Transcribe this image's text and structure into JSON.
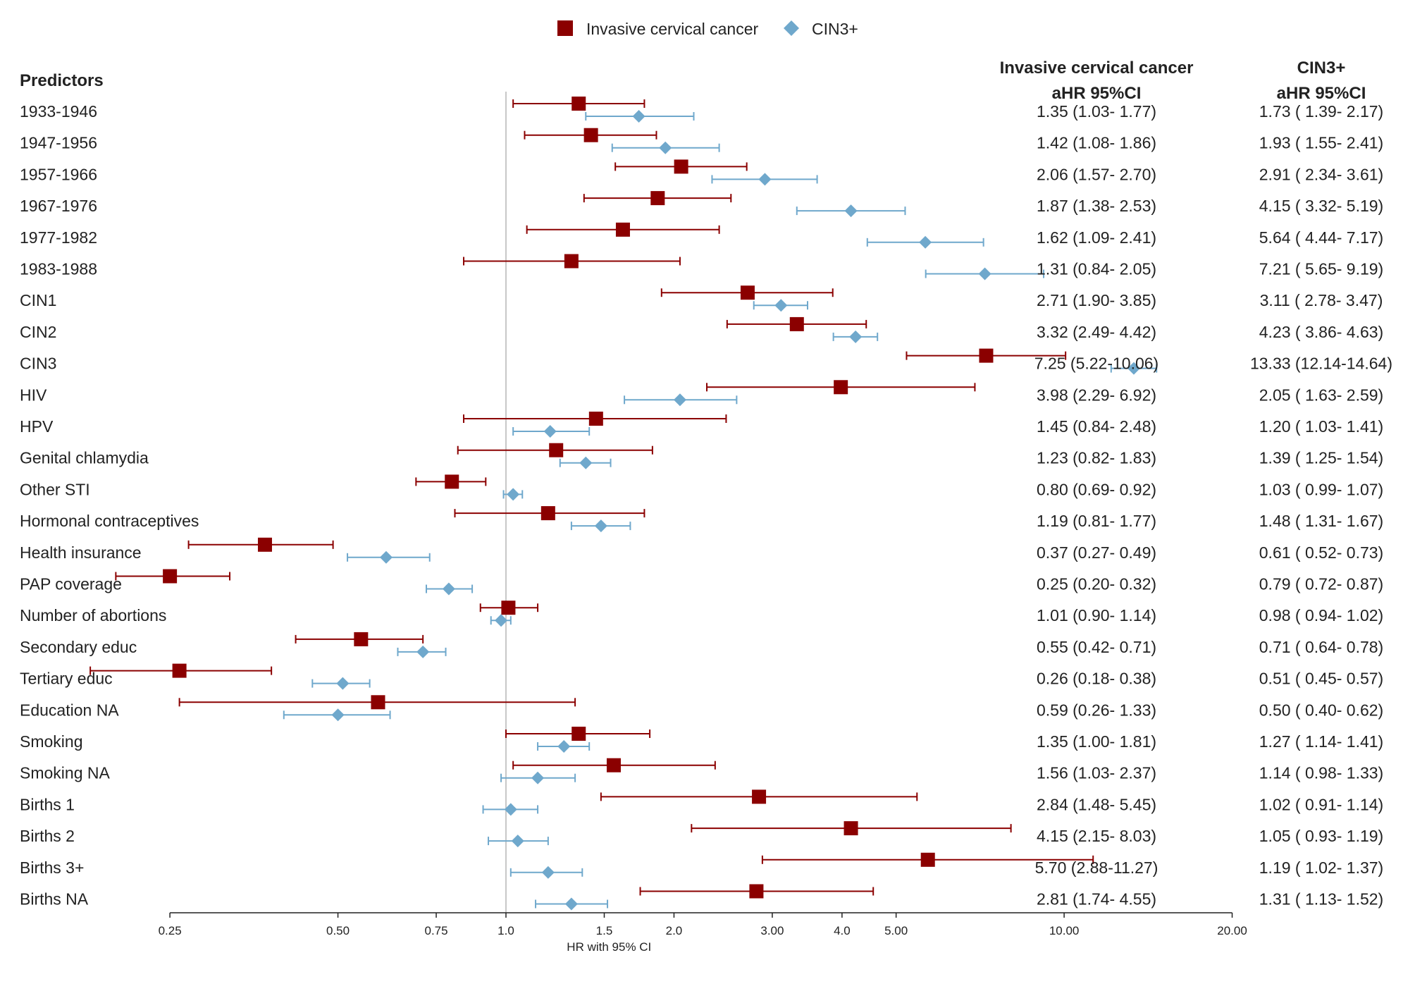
{
  "chart_data": {
    "type": "forest",
    "title": "",
    "xlabel": "HR with 95% CI",
    "xscale": "log",
    "xlim": [
      0.25,
      20
    ],
    "reference_line": 1,
    "x_ticks": [
      {
        "value": 0.25,
        "label": "0.25"
      },
      {
        "value": 0.5,
        "label": "0.50"
      },
      {
        "value": 0.75,
        "label": "0.75"
      },
      {
        "value": 1.0,
        "label": "1.0"
      },
      {
        "value": 1.5,
        "label": "1.5"
      },
      {
        "value": 2.0,
        "label": "2.0"
      },
      {
        "value": 3.0,
        "label": "3.00"
      },
      {
        "value": 4.0,
        "label": "4.0"
      },
      {
        "value": 5.0,
        "label": "5.00"
      },
      {
        "value": 10.0,
        "label": "10.00"
      },
      {
        "value": 20.0,
        "label": "20.00"
      }
    ],
    "legend": [
      {
        "name": "Invasive cervical cancer",
        "color": "#8b0000",
        "marker": "square"
      },
      {
        "name": "CIN3+",
        "color": "#6fa8cc",
        "marker": "diamond"
      }
    ],
    "predictors_header": "Predictors",
    "col1_header": [
      "Invasive cervical cancer",
      "aHR 95%CI"
    ],
    "col2_header": [
      "CIN3+",
      "aHR 95%CI"
    ],
    "rows": [
      {
        "label": "1933-1946",
        "icc": [
          1.35,
          1.03,
          1.77
        ],
        "icc_text": "1.35 (1.03- 1.77)",
        "cin": [
          1.73,
          1.39,
          2.17
        ],
        "cin_text": "1.73 ( 1.39- 2.17)"
      },
      {
        "label": "1947-1956",
        "icc": [
          1.42,
          1.08,
          1.86
        ],
        "icc_text": "1.42 (1.08- 1.86)",
        "cin": [
          1.93,
          1.55,
          2.41
        ],
        "cin_text": "1.93 ( 1.55- 2.41)"
      },
      {
        "label": "1957-1966",
        "icc": [
          2.06,
          1.57,
          2.7
        ],
        "icc_text": "2.06 (1.57- 2.70)",
        "cin": [
          2.91,
          2.34,
          3.61
        ],
        "cin_text": "2.91 ( 2.34- 3.61)"
      },
      {
        "label": "1967-1976",
        "icc": [
          1.87,
          1.38,
          2.53
        ],
        "icc_text": "1.87 (1.38- 2.53)",
        "cin": [
          4.15,
          3.32,
          5.19
        ],
        "cin_text": "4.15 ( 3.32- 5.19)"
      },
      {
        "label": "1977-1982",
        "icc": [
          1.62,
          1.09,
          2.41
        ],
        "icc_text": "1.62 (1.09- 2.41)",
        "cin": [
          5.64,
          4.44,
          7.17
        ],
        "cin_text": "5.64 ( 4.44- 7.17)"
      },
      {
        "label": "1983-1988",
        "icc": [
          1.31,
          0.84,
          2.05
        ],
        "icc_text": "1.31 (0.84- 2.05)",
        "cin": [
          7.21,
          5.65,
          9.19
        ],
        "cin_text": "7.21 ( 5.65- 9.19)"
      },
      {
        "label": "CIN1",
        "icc": [
          2.71,
          1.9,
          3.85
        ],
        "icc_text": "2.71 (1.90- 3.85)",
        "cin": [
          3.11,
          2.78,
          3.47
        ],
        "cin_text": "3.11 ( 2.78- 3.47)"
      },
      {
        "label": "CIN2",
        "icc": [
          3.32,
          2.49,
          4.42
        ],
        "icc_text": "3.32 (2.49- 4.42)",
        "cin": [
          4.23,
          3.86,
          4.63
        ],
        "cin_text": "4.23 ( 3.86- 4.63)"
      },
      {
        "label": "CIN3",
        "icc": [
          7.25,
          5.22,
          10.06
        ],
        "icc_text": "7.25 (5.22-10.06)",
        "cin": [
          13.33,
          12.14,
          14.64
        ],
        "cin_text": "13.33 (12.14-14.64)"
      },
      {
        "label": "HIV",
        "icc": [
          3.98,
          2.29,
          6.92
        ],
        "icc_text": "3.98 (2.29- 6.92)",
        "cin": [
          2.05,
          1.63,
          2.59
        ],
        "cin_text": "2.05 ( 1.63- 2.59)"
      },
      {
        "label": "HPV",
        "icc": [
          1.45,
          0.84,
          2.48
        ],
        "icc_text": "1.45 (0.84- 2.48)",
        "cin": [
          1.2,
          1.03,
          1.41
        ],
        "cin_text": "1.20 ( 1.03- 1.41)"
      },
      {
        "label": "Genital chlamydia",
        "icc": [
          1.23,
          0.82,
          1.83
        ],
        "icc_text": "1.23 (0.82- 1.83)",
        "cin": [
          1.39,
          1.25,
          1.54
        ],
        "cin_text": "1.39 ( 1.25- 1.54)"
      },
      {
        "label": "Other STI",
        "icc": [
          0.8,
          0.69,
          0.92
        ],
        "icc_text": "0.80 (0.69- 0.92)",
        "cin": [
          1.03,
          0.99,
          1.07
        ],
        "cin_text": "1.03 ( 0.99- 1.07)"
      },
      {
        "label": "Hormonal contraceptives",
        "icc": [
          1.19,
          0.81,
          1.77
        ],
        "icc_text": "1.19 (0.81- 1.77)",
        "cin": [
          1.48,
          1.31,
          1.67
        ],
        "cin_text": "1.48 ( 1.31- 1.67)"
      },
      {
        "label": "Health insurance",
        "icc": [
          0.37,
          0.27,
          0.49
        ],
        "icc_text": "0.37 (0.27- 0.49)",
        "cin": [
          0.61,
          0.52,
          0.73
        ],
        "cin_text": "0.61 ( 0.52- 0.73)"
      },
      {
        "label": "PAP coverage",
        "icc": [
          0.25,
          0.2,
          0.32
        ],
        "icc_text": "0.25 (0.20- 0.32)",
        "cin": [
          0.79,
          0.72,
          0.87
        ],
        "cin_text": "0.79 ( 0.72- 0.87)"
      },
      {
        "label": "Number of abortions",
        "icc": [
          1.01,
          0.9,
          1.14
        ],
        "icc_text": "1.01 (0.90- 1.14)",
        "cin": [
          0.98,
          0.94,
          1.02
        ],
        "cin_text": "0.98 ( 0.94- 1.02)"
      },
      {
        "label": "Secondary educ",
        "icc": [
          0.55,
          0.42,
          0.71
        ],
        "icc_text": "0.55 (0.42- 0.71)",
        "cin": [
          0.71,
          0.64,
          0.78
        ],
        "cin_text": "0.71 ( 0.64- 0.78)"
      },
      {
        "label": "Tertiary educ",
        "icc": [
          0.26,
          0.18,
          0.38
        ],
        "icc_text": "0.26 (0.18- 0.38)",
        "cin": [
          0.51,
          0.45,
          0.57
        ],
        "cin_text": "0.51 ( 0.45- 0.57)"
      },
      {
        "label": "Education NA",
        "icc": [
          0.59,
          0.26,
          1.33
        ],
        "icc_text": "0.59 (0.26- 1.33)",
        "cin": [
          0.5,
          0.4,
          0.62
        ],
        "cin_text": "0.50 ( 0.40- 0.62)"
      },
      {
        "label": "Smoking",
        "icc": [
          1.35,
          1.0,
          1.81
        ],
        "icc_text": "1.35 (1.00- 1.81)",
        "cin": [
          1.27,
          1.14,
          1.41
        ],
        "cin_text": "1.27 ( 1.14- 1.41)"
      },
      {
        "label": "Smoking NA",
        "icc": [
          1.56,
          1.03,
          2.37
        ],
        "icc_text": "1.56 (1.03- 2.37)",
        "cin": [
          1.14,
          0.98,
          1.33
        ],
        "cin_text": "1.14 ( 0.98- 1.33)"
      },
      {
        "label": "Births 1",
        "icc": [
          2.84,
          1.48,
          5.45
        ],
        "icc_text": "2.84 (1.48- 5.45)",
        "cin": [
          1.02,
          0.91,
          1.14
        ],
        "cin_text": "1.02 ( 0.91- 1.14)"
      },
      {
        "label": "Births 2",
        "icc": [
          4.15,
          2.15,
          8.03
        ],
        "icc_text": "4.15 (2.15- 8.03)",
        "cin": [
          1.05,
          0.93,
          1.19
        ],
        "cin_text": "1.05 ( 0.93- 1.19)"
      },
      {
        "label": "Births 3+",
        "icc": [
          5.7,
          2.88,
          11.27
        ],
        "icc_text": "5.70 (2.88-11.27)",
        "cin": [
          1.19,
          1.02,
          1.37
        ],
        "cin_text": "1.19 ( 1.02- 1.37)"
      },
      {
        "label": "Births NA",
        "icc": [
          2.81,
          1.74,
          4.55
        ],
        "icc_text": "2.81 (1.74- 4.55)",
        "cin": [
          1.31,
          1.13,
          1.52
        ],
        "cin_text": "1.31 ( 1.13- 1.52)"
      }
    ]
  }
}
